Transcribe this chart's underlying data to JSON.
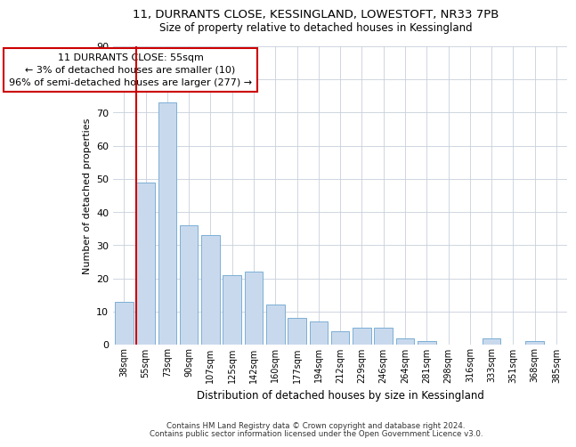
{
  "title1": "11, DURRANTS CLOSE, KESSINGLAND, LOWESTOFT, NR33 7PB",
  "title2": "Size of property relative to detached houses in Kessingland",
  "xlabel": "Distribution of detached houses by size in Kessingland",
  "ylabel": "Number of detached properties",
  "bar_labels": [
    "38sqm",
    "55sqm",
    "73sqm",
    "90sqm",
    "107sqm",
    "125sqm",
    "142sqm",
    "160sqm",
    "177sqm",
    "194sqm",
    "212sqm",
    "229sqm",
    "246sqm",
    "264sqm",
    "281sqm",
    "298sqm",
    "316sqm",
    "333sqm",
    "351sqm",
    "368sqm",
    "385sqm"
  ],
  "bar_values": [
    13,
    49,
    73,
    36,
    33,
    21,
    22,
    12,
    8,
    7,
    4,
    5,
    5,
    2,
    1,
    0,
    0,
    2,
    0,
    1,
    0
  ],
  "bar_color": "#c9d9ed",
  "bar_edge_color": "#7bafd4",
  "highlight_color": "#cc0000",
  "annotation_title": "11 DURRANTS CLOSE: 55sqm",
  "annotation_line1": "← 3% of detached houses are smaller (10)",
  "annotation_line2": "96% of semi-detached houses are larger (277) →",
  "annotation_box_color": "#ffffff",
  "annotation_box_edge": "#cc0000",
  "ylim": [
    0,
    90
  ],
  "yticks": [
    0,
    10,
    20,
    30,
    40,
    50,
    60,
    70,
    80,
    90
  ],
  "footer1": "Contains HM Land Registry data © Crown copyright and database right 2024.",
  "footer2": "Contains public sector information licensed under the Open Government Licence v3.0.",
  "bg_color": "#ffffff",
  "grid_color": "#c8d0dc"
}
